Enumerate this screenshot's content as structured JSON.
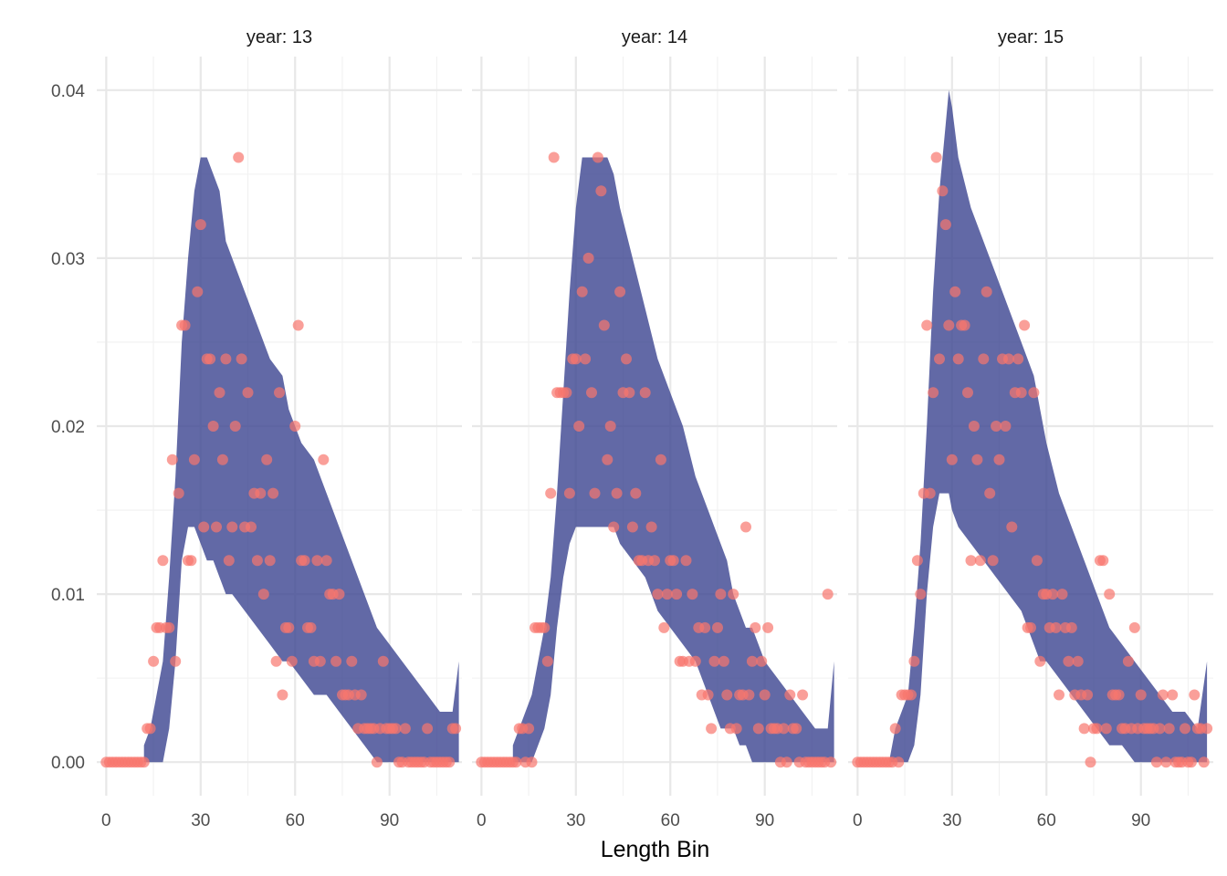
{
  "chart_data": {
    "type": "area",
    "xlabel": "Length Bin",
    "ylabel": "",
    "xlim": [
      -3,
      113
    ],
    "ylim": [
      -0.002,
      0.042
    ],
    "x_ticks": [
      0,
      30,
      60,
      90
    ],
    "x_tick_labels": [
      "0",
      "30",
      "60",
      "90"
    ],
    "y_ticks": [
      0.0,
      0.01,
      0.02,
      0.03,
      0.04
    ],
    "y_tick_labels": [
      "0.00",
      "0.01",
      "0.02",
      "0.03",
      "0.04"
    ],
    "grid": true,
    "colors": {
      "band": "#3b4490",
      "band_opacity": 0.8,
      "points": "#f8766d",
      "points_opacity": 0.7
    },
    "panels": [
      {
        "title": "year: 13",
        "band": {
          "x": [
            12,
            14,
            18,
            20,
            22,
            24,
            26,
            28,
            30,
            32,
            34,
            36,
            38,
            40,
            44,
            48,
            52,
            56,
            58,
            62,
            66,
            70,
            74,
            78,
            82,
            86,
            90,
            94,
            98,
            102,
            106,
            110,
            112
          ],
          "upper": [
            0.001,
            0.002,
            0.006,
            0.011,
            0.017,
            0.025,
            0.03,
            0.034,
            0.036,
            0.036,
            0.035,
            0.034,
            0.031,
            0.03,
            0.028,
            0.026,
            0.024,
            0.023,
            0.021,
            0.019,
            0.018,
            0.016,
            0.014,
            0.012,
            0.01,
            0.008,
            0.007,
            0.006,
            0.005,
            0.004,
            0.003,
            0.003,
            0.006
          ],
          "lower": [
            0.0,
            0.0,
            0.0,
            0.002,
            0.006,
            0.012,
            0.014,
            0.014,
            0.013,
            0.012,
            0.012,
            0.011,
            0.01,
            0.01,
            0.009,
            0.008,
            0.007,
            0.006,
            0.006,
            0.005,
            0.004,
            0.004,
            0.003,
            0.002,
            0.001,
            0.0,
            0.0,
            0.0,
            0.0,
            0.0,
            0.0,
            0.0,
            0.0
          ]
        },
        "points": {
          "x": [
            0,
            1,
            2,
            3,
            4,
            5,
            6,
            7,
            8,
            9,
            10,
            11,
            12,
            13,
            14,
            15,
            16,
            17,
            18,
            19,
            20,
            21,
            22,
            23,
            24,
            25,
            26,
            27,
            28,
            29,
            30,
            31,
            32,
            33,
            34,
            35,
            36,
            37,
            38,
            39,
            40,
            41,
            42,
            43,
            44,
            45,
            46,
            47,
            48,
            49,
            50,
            51,
            52,
            53,
            54,
            55,
            56,
            57,
            58,
            59,
            60,
            61,
            62,
            63,
            64,
            65,
            66,
            67,
            68,
            69,
            70,
            71,
            72,
            73,
            74,
            75,
            76,
            77,
            78,
            79,
            80,
            81,
            82,
            83,
            84,
            85,
            86,
            87,
            88,
            89,
            90,
            91,
            92,
            93,
            94,
            95,
            96,
            97,
            98,
            99,
            100,
            101,
            102,
            103,
            104,
            105,
            106,
            107,
            108,
            109,
            110,
            111
          ],
          "y": [
            0,
            0,
            0,
            0,
            0,
            0,
            0,
            0,
            0,
            0,
            0,
            0,
            0,
            0.002,
            0.002,
            0.006,
            0.008,
            0.008,
            0.012,
            0.008,
            0.008,
            0.018,
            0.006,
            0.016,
            0.026,
            0.026,
            0.012,
            0.012,
            0.018,
            0.028,
            0.032,
            0.014,
            0.024,
            0.024,
            0.02,
            0.014,
            0.022,
            0.018,
            0.024,
            0.012,
            0.014,
            0.02,
            0.036,
            0.024,
            0.014,
            0.022,
            0.014,
            0.016,
            0.012,
            0.016,
            0.01,
            0.018,
            0.012,
            0.016,
            0.006,
            0.022,
            0.004,
            0.008,
            0.008,
            0.006,
            0.02,
            0.026,
            0.012,
            0.012,
            0.008,
            0.008,
            0.006,
            0.012,
            0.006,
            0.018,
            0.012,
            0.01,
            0.01,
            0.006,
            0.01,
            0.004,
            0.004,
            0.004,
            0.006,
            0.004,
            0.002,
            0.004,
            0.002,
            0.002,
            0.002,
            0.002,
            0,
            0.002,
            0.006,
            0.002,
            0.002,
            0.002,
            0.002,
            0,
            0,
            0.002,
            0,
            0,
            0,
            0,
            0,
            0,
            0.002,
            0,
            0,
            0,
            0,
            0,
            0,
            0,
            0.002,
            0.002
          ]
        }
      },
      {
        "title": "year: 14",
        "band": {
          "x": [
            10,
            12,
            16,
            18,
            20,
            22,
            24,
            26,
            28,
            30,
            32,
            36,
            40,
            42,
            44,
            48,
            52,
            56,
            60,
            64,
            68,
            72,
            74,
            76,
            78,
            80,
            82,
            84,
            86,
            88,
            90,
            94,
            98,
            102,
            106,
            110,
            112
          ],
          "upper": [
            0.001,
            0.002,
            0.004,
            0.006,
            0.008,
            0.011,
            0.016,
            0.022,
            0.028,
            0.033,
            0.036,
            0.036,
            0.036,
            0.035,
            0.033,
            0.03,
            0.027,
            0.024,
            0.022,
            0.02,
            0.017,
            0.015,
            0.014,
            0.013,
            0.012,
            0.01,
            0.009,
            0.008,
            0.008,
            0.007,
            0.006,
            0.005,
            0.004,
            0.003,
            0.002,
            0.002,
            0.006
          ],
          "lower": [
            0.0,
            0.0,
            0.0,
            0.001,
            0.002,
            0.004,
            0.008,
            0.011,
            0.013,
            0.014,
            0.014,
            0.014,
            0.014,
            0.014,
            0.013,
            0.012,
            0.011,
            0.009,
            0.008,
            0.007,
            0.006,
            0.004,
            0.003,
            0.002,
            0.002,
            0.002,
            0.001,
            0.001,
            0.0,
            0.0,
            0.0,
            0.0,
            0.0,
            0.0,
            0.0,
            0.0,
            0.0
          ]
        },
        "points": {
          "x": [
            0,
            1,
            2,
            3,
            4,
            5,
            6,
            7,
            8,
            9,
            10,
            11,
            12,
            13,
            14,
            15,
            16,
            17,
            18,
            19,
            20,
            21,
            22,
            23,
            24,
            25,
            26,
            27,
            28,
            29,
            30,
            31,
            32,
            33,
            34,
            35,
            36,
            37,
            38,
            39,
            40,
            41,
            42,
            43,
            44,
            45,
            46,
            47,
            48,
            49,
            50,
            51,
            52,
            53,
            54,
            55,
            56,
            57,
            58,
            59,
            60,
            61,
            62,
            63,
            64,
            65,
            66,
            67,
            68,
            69,
            70,
            71,
            72,
            73,
            74,
            75,
            76,
            77,
            78,
            79,
            80,
            81,
            82,
            83,
            84,
            85,
            86,
            87,
            88,
            89,
            90,
            91,
            92,
            93,
            94,
            95,
            96,
            97,
            98,
            99,
            100,
            101,
            102,
            103,
            104,
            105,
            106,
            107,
            108,
            109,
            110,
            111
          ],
          "y": [
            0,
            0,
            0,
            0,
            0,
            0,
            0,
            0,
            0,
            0,
            0,
            0,
            0.002,
            0.002,
            0,
            0.002,
            0,
            0.008,
            0.008,
            0.008,
            0.008,
            0.006,
            0.016,
            0.036,
            0.022,
            0.022,
            0.022,
            0.022,
            0.016,
            0.024,
            0.024,
            0.02,
            0.028,
            0.024,
            0.03,
            0.022,
            0.016,
            0.036,
            0.034,
            0.026,
            0.018,
            0.02,
            0.014,
            0.016,
            0.028,
            0.022,
            0.024,
            0.022,
            0.014,
            0.016,
            0.012,
            0.012,
            0.022,
            0.012,
            0.014,
            0.012,
            0.01,
            0.018,
            0.008,
            0.01,
            0.012,
            0.012,
            0.01,
            0.006,
            0.006,
            0.012,
            0.006,
            0.01,
            0.006,
            0.008,
            0.004,
            0.008,
            0.004,
            0.002,
            0.006,
            0.008,
            0.01,
            0.006,
            0.004,
            0.002,
            0.01,
            0.002,
            0.004,
            0.004,
            0.014,
            0.004,
            0.006,
            0.008,
            0.002,
            0.006,
            0.004,
            0.008,
            0.002,
            0.002,
            0.002,
            0,
            0.002,
            0,
            0.004,
            0.002,
            0.002,
            0,
            0.004,
            0,
            0,
            0,
            0,
            0,
            0,
            0,
            0.01,
            0
          ]
        }
      },
      {
        "title": "year: 15",
        "band": {
          "x": [
            10,
            12,
            16,
            18,
            20,
            22,
            24,
            26,
            28,
            29,
            30,
            32,
            36,
            40,
            44,
            48,
            52,
            56,
            58,
            60,
            64,
            68,
            72,
            76,
            80,
            84,
            88,
            92,
            96,
            100,
            104,
            108,
            111
          ],
          "upper": [
            0.0,
            0.002,
            0.004,
            0.008,
            0.013,
            0.02,
            0.028,
            0.034,
            0.038,
            0.04,
            0.039,
            0.036,
            0.033,
            0.031,
            0.029,
            0.027,
            0.025,
            0.023,
            0.021,
            0.019,
            0.016,
            0.014,
            0.012,
            0.01,
            0.008,
            0.007,
            0.006,
            0.005,
            0.004,
            0.003,
            0.003,
            0.002,
            0.006
          ],
          "lower": [
            0.0,
            0.0,
            0.0,
            0.001,
            0.004,
            0.01,
            0.014,
            0.016,
            0.016,
            0.016,
            0.015,
            0.014,
            0.013,
            0.012,
            0.011,
            0.01,
            0.009,
            0.007,
            0.006,
            0.006,
            0.005,
            0.004,
            0.003,
            0.002,
            0.001,
            0.001,
            0.0,
            0.0,
            0.0,
            0.0,
            0.0,
            0.0,
            0.0
          ]
        },
        "points": {
          "x": [
            0,
            1,
            2,
            3,
            4,
            5,
            6,
            7,
            8,
            9,
            10,
            11,
            12,
            13,
            14,
            15,
            16,
            17,
            18,
            19,
            20,
            21,
            22,
            23,
            24,
            25,
            26,
            27,
            28,
            29,
            30,
            31,
            32,
            33,
            34,
            35,
            36,
            37,
            38,
            39,
            40,
            41,
            42,
            43,
            44,
            45,
            46,
            47,
            48,
            49,
            50,
            51,
            52,
            53,
            54,
            55,
            56,
            57,
            58,
            59,
            60,
            61,
            62,
            63,
            64,
            65,
            66,
            67,
            68,
            69,
            70,
            71,
            72,
            73,
            74,
            75,
            76,
            77,
            78,
            79,
            80,
            81,
            82,
            83,
            84,
            85,
            86,
            87,
            88,
            89,
            90,
            91,
            92,
            93,
            94,
            95,
            96,
            97,
            98,
            99,
            100,
            101,
            102,
            103,
            104,
            105,
            106,
            107,
            108,
            109,
            110,
            111
          ],
          "y": [
            0,
            0,
            0,
            0,
            0,
            0,
            0,
            0,
            0,
            0,
            0,
            0,
            0.002,
            0,
            0.004,
            0.004,
            0.004,
            0.004,
            0.006,
            0.012,
            0.01,
            0.016,
            0.026,
            0.016,
            0.022,
            0.036,
            0.024,
            0.034,
            0.032,
            0.026,
            0.018,
            0.028,
            0.024,
            0.026,
            0.026,
            0.022,
            0.012,
            0.02,
            0.018,
            0.012,
            0.024,
            0.028,
            0.016,
            0.012,
            0.02,
            0.018,
            0.024,
            0.02,
            0.024,
            0.014,
            0.022,
            0.024,
            0.022,
            0.026,
            0.008,
            0.008,
            0.022,
            0.012,
            0.006,
            0.01,
            0.01,
            0.008,
            0.01,
            0.008,
            0.004,
            0.01,
            0.008,
            0.006,
            0.008,
            0.004,
            0.006,
            0.004,
            0.002,
            0.004,
            0,
            0.002,
            0.002,
            0.012,
            0.012,
            0.002,
            0.01,
            0.004,
            0.004,
            0.004,
            0.002,
            0.002,
            0.006,
            0.002,
            0.008,
            0.002,
            0.004,
            0.002,
            0.002,
            0.002,
            0.002,
            0,
            0.002,
            0.004,
            0,
            0.002,
            0.004,
            0,
            0,
            0,
            0.002,
            0,
            0,
            0.004,
            0.002,
            0.002,
            0,
            0.002
          ]
        }
      }
    ]
  }
}
